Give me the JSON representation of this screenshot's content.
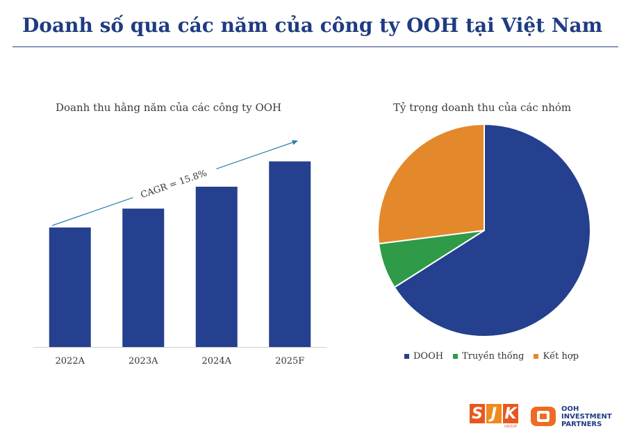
{
  "page_title": "Doanh số qua các năm của công ty OOH tại Việt Nam",
  "colors": {
    "title": "#1f3b82",
    "bar": "#24408e",
    "dooh": "#24408e",
    "traditional": "#2f9a48",
    "combined": "#e3892b",
    "arrow": "#2a7fa8"
  },
  "chart_data": [
    {
      "type": "bar",
      "title": "Doanh thu hằng năm của các công ty OOH",
      "categories": [
        "2022A",
        "2023A",
        "2024A",
        "2025F"
      ],
      "values": [
        100,
        115.8,
        134.1,
        155.3
      ],
      "ylim": [
        0,
        180
      ],
      "annotation": "CAGR = 15.8%",
      "grid": false,
      "legend": "none"
    },
    {
      "type": "pie",
      "title": "Tỷ trọng doanh thu của các nhóm",
      "labels": [
        "DOOH",
        "Truyền thống",
        "Kết hợp"
      ],
      "values": [
        66,
        7,
        27
      ],
      "legend": "bottom"
    }
  ],
  "logos": {
    "sjk": {
      "letters": [
        "S",
        "J",
        "K"
      ],
      "sub": "GROUP"
    },
    "ooh": {
      "text": "OOH\nINVESTMENT\nPARTNERS"
    }
  }
}
